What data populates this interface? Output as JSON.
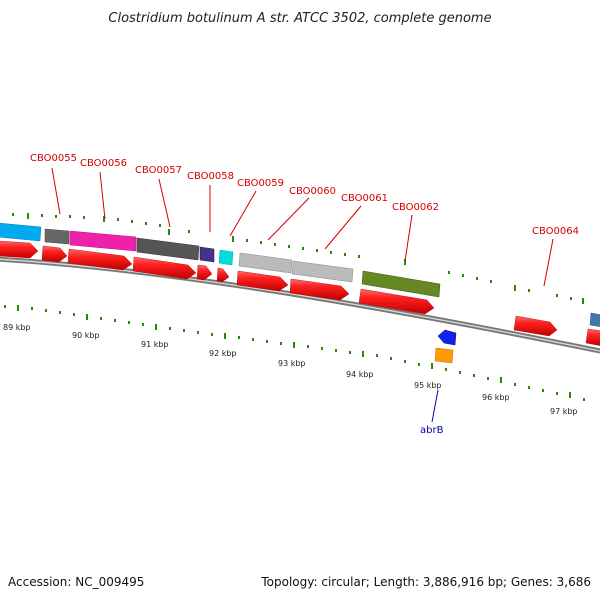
{
  "title": "Clostridium botulinum A str. ATCC 3502, complete genome",
  "footer": {
    "accession": "Accession: NC_009495",
    "summary": "Topology: circular; Length: 3,886,916 bp; Genes: 3,686"
  },
  "gene_labels": [
    "CBO0055",
    "CBO0056",
    "CBO0057",
    "CBO0058",
    "CBO0059",
    "CBO0060",
    "CBO0061",
    "CBO0062",
    "CBO0064"
  ],
  "minus_strand_label": "abrB",
  "kbp_ticks": [
    "89 kbp",
    "90 kbp",
    "91 kbp",
    "92 kbp",
    "93 kbp",
    "94 kbp",
    "95 kbp",
    "96 kbp",
    "97 kbp"
  ],
  "colors": {
    "backbone": "#888888",
    "gene_arrow": "#ff1a1a",
    "label_red": "#d40000",
    "label_blue": "#0000aa",
    "tick_green": "#2a8a00",
    "feature_colors": [
      "#00aaee",
      "#666666",
      "#ee22aa",
      "#555555",
      "#443388",
      "#00dddd",
      "#bbbbbb",
      "#bbbbbb",
      "#668822",
      "#4477aa",
      "#1122ee",
      "#ff9900"
    ]
  }
}
